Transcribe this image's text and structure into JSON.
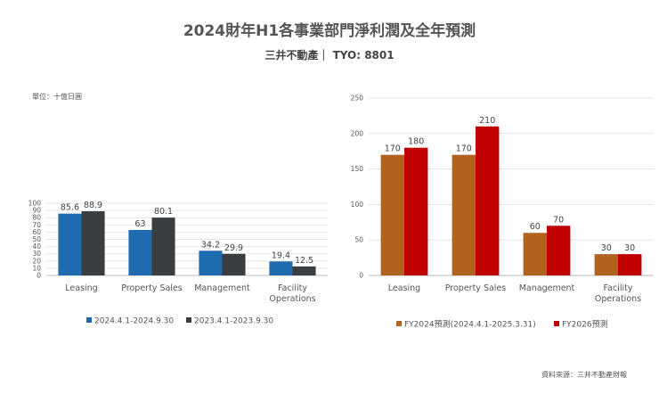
{
  "header": {
    "title": "2024財年H1各事業部門淨利潤及全年預測",
    "subtitle": "三井不動產｜ TYO: 8801"
  },
  "unit_label": "單位：十億日圓",
  "source_label": "資料來源：三井不動產財報",
  "colors": {
    "blue": "#1f6bb0",
    "dark": "#3b3e41",
    "brown": "#b06420",
    "red": "#c00000",
    "grid": "#e3e3e3"
  },
  "chart_data": [
    {
      "type": "bar",
      "categories": [
        "Leasing",
        "Property Sales",
        "Management",
        "Facility Operations"
      ],
      "series": [
        {
          "name": "2024.4.1-2024.9.30",
          "values": [
            85.6,
            63,
            34.2,
            19.4
          ],
          "labels": [
            "85.6",
            "63",
            "34.2",
            "19.4"
          ]
        },
        {
          "name": "2023.4.1-2023.9.30",
          "values": [
            88.9,
            80.1,
            29.9,
            12.5
          ],
          "labels": [
            "88.9",
            "80.1",
            "29.9",
            "12.5"
          ]
        }
      ],
      "ylim": [
        0,
        100
      ],
      "yticks": [
        0,
        10,
        20,
        30,
        40,
        50,
        60,
        70,
        80,
        90,
        100
      ],
      "grid": true,
      "legend": "bottom"
    },
    {
      "type": "bar",
      "categories": [
        "Leasing",
        "Property Sales",
        "Management",
        "Facility Operations"
      ],
      "series": [
        {
          "name": "FY2024預測(2024.4.1-2025.3.31)",
          "values": [
            170,
            170,
            60,
            30
          ],
          "labels": [
            "170",
            "170",
            "60",
            "30"
          ]
        },
        {
          "name": "FY2026預測",
          "values": [
            180,
            210,
            70,
            30
          ],
          "labels": [
            "180",
            "210",
            "70",
            "30"
          ]
        }
      ],
      "ylim": [
        0,
        250
      ],
      "yticks": [
        0,
        50,
        100,
        150,
        200,
        250
      ],
      "grid": true,
      "legend": "bottom"
    }
  ]
}
